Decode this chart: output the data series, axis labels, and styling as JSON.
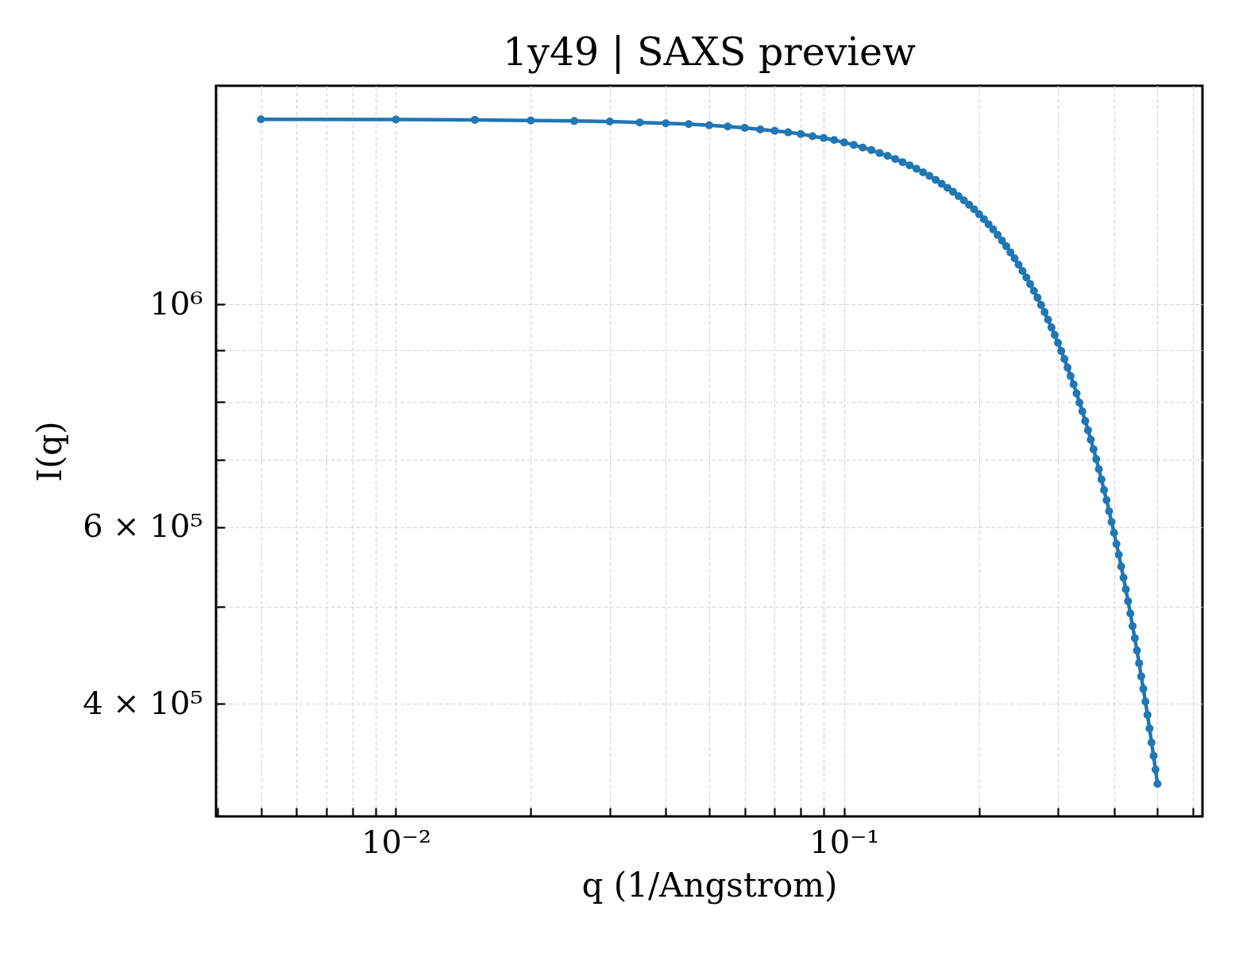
{
  "chart_data": {
    "type": "line",
    "title": "1y49 | SAXS preview",
    "xlabel": "q (1/Angstrom)",
    "ylabel": "I(q)",
    "x": [
      0.005,
      0.01,
      0.015,
      0.02,
      0.025,
      0.03,
      0.035,
      0.04,
      0.045,
      0.05,
      0.055,
      0.06,
      0.065,
      0.07,
      0.075,
      0.08,
      0.085,
      0.09,
      0.095,
      0.1,
      0.105,
      0.11,
      0.115,
      0.12,
      0.125,
      0.13,
      0.135,
      0.14,
      0.145,
      0.15,
      0.155,
      0.16,
      0.165,
      0.17,
      0.175,
      0.18,
      0.185,
      0.19,
      0.195,
      0.2,
      0.205,
      0.21,
      0.215,
      0.22,
      0.225,
      0.23,
      0.235,
      0.24,
      0.245,
      0.25,
      0.255,
      0.26,
      0.265,
      0.27,
      0.275,
      0.28,
      0.285,
      0.29,
      0.295,
      0.3,
      0.305,
      0.31,
      0.315,
      0.32,
      0.325,
      0.33,
      0.335,
      0.34,
      0.345,
      0.35,
      0.355,
      0.36,
      0.365,
      0.37,
      0.375,
      0.38,
      0.385,
      0.39,
      0.395,
      0.4,
      0.405,
      0.41,
      0.415,
      0.42,
      0.425,
      0.43,
      0.435,
      0.44,
      0.445,
      0.45,
      0.455,
      0.46,
      0.465,
      0.47,
      0.475,
      0.48,
      0.485,
      0.49,
      0.495,
      0.5
    ],
    "series": [
      {
        "color": "#1f77b4",
        "values": [
          1528000,
          1527000,
          1526000,
          1524000,
          1522000,
          1520000,
          1517000,
          1514000,
          1511000,
          1507000,
          1503000,
          1498000,
          1493000,
          1488000,
          1483000,
          1477000,
          1470000,
          1464000,
          1457000,
          1449000,
          1441000,
          1432000,
          1424000,
          1414000,
          1405000,
          1395000,
          1385000,
          1375000,
          1364000,
          1353000,
          1342000,
          1330000,
          1318000,
          1306000,
          1294000,
          1281000,
          1269000,
          1256000,
          1243000,
          1229000,
          1215000,
          1201000,
          1187000,
          1172000,
          1157000,
          1142000,
          1126000,
          1111000,
          1095000,
          1079000,
          1063000,
          1047000,
          1031000,
          1015000,
          998000,
          982000,
          965000,
          948000,
          932000,
          915000,
          898000,
          882000,
          865000,
          848000,
          832000,
          815000,
          798000,
          782000,
          765000,
          749000,
          733000,
          717000,
          701000,
          685000,
          669000,
          653000,
          638000,
          622000,
          607000,
          592000,
          577000,
          563000,
          548000,
          534000,
          520000,
          506000,
          492000,
          478000,
          465000,
          452000,
          439000,
          426000,
          414000,
          402000,
          390000,
          378000,
          366000,
          355000,
          344000,
          333000
        ]
      }
    ],
    "xlim": [
      0.00397,
      0.63
    ],
    "ylim": [
      309000,
      1650000
    ],
    "xticks": [
      {
        "value": 0.004,
        "label": null
      },
      {
        "value": 0.005,
        "label": null
      },
      {
        "value": 0.006,
        "label": null
      },
      {
        "value": 0.007,
        "label": null
      },
      {
        "value": 0.008,
        "label": null
      },
      {
        "value": 0.009,
        "label": null
      },
      {
        "value": 0.01,
        "label": "10⁻²"
      },
      {
        "value": 0.02,
        "label": null
      },
      {
        "value": 0.03,
        "label": null
      },
      {
        "value": 0.04,
        "label": null
      },
      {
        "value": 0.05,
        "label": null
      },
      {
        "value": 0.06,
        "label": null
      },
      {
        "value": 0.07,
        "label": null
      },
      {
        "value": 0.08,
        "label": null
      },
      {
        "value": 0.09,
        "label": null
      },
      {
        "value": 0.1,
        "label": "10⁻¹"
      },
      {
        "value": 0.2,
        "label": null
      },
      {
        "value": 0.3,
        "label": null
      },
      {
        "value": 0.4,
        "label": null
      },
      {
        "value": 0.5,
        "label": null
      },
      {
        "value": 0.6,
        "label": null
      }
    ],
    "yticks": [
      {
        "value": 400000,
        "label": "4 × 10⁵"
      },
      {
        "value": 500000,
        "label": null
      },
      {
        "value": 600000,
        "label": "6 × 10⁵"
      },
      {
        "value": 700000,
        "label": null
      },
      {
        "value": 800000,
        "label": null
      },
      {
        "value": 900000,
        "label": null
      },
      {
        "value": 1000000,
        "label": "10⁶"
      }
    ],
    "log": "xy",
    "grid": true,
    "marker": "circle",
    "line_style": "solid"
  }
}
